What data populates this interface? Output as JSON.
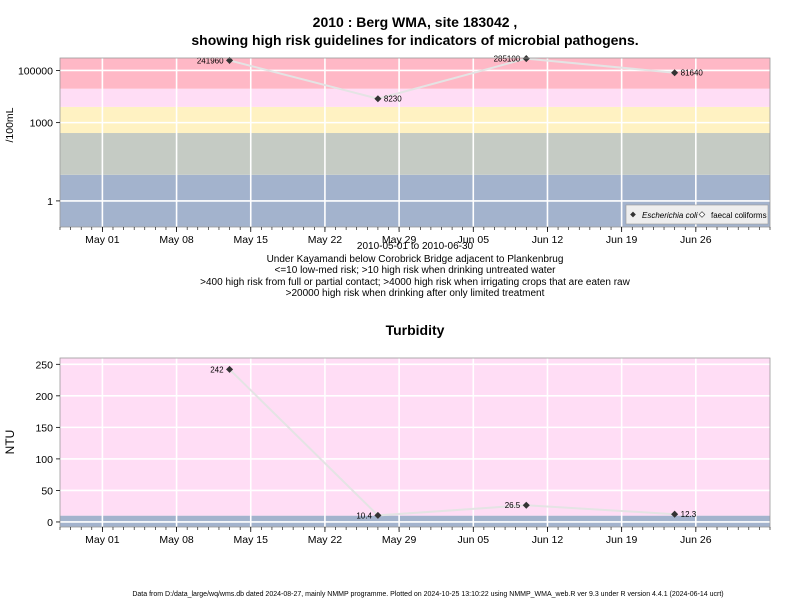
{
  "page": {
    "title_line1": "2010 : Berg WMA, site 183042 ,",
    "title_line2": "showing high risk guidelines for indicators of microbial pathogens.",
    "footer": "Data from D:/data_large/wq/wms.db dated 2024-08-27, mainly NMMP programme. Plotted on 2024-10-25 13:10:22 using NMMP_WMA_web.R ver 9.3 under R version 4.4.1 (2024-06-14 ucrt)"
  },
  "chart_data": [
    {
      "type": "scatter",
      "title": "",
      "ylabel": "/100mL",
      "xlabel": "",
      "y_scale": "log10",
      "ylim": [
        0.1,
        300000
      ],
      "xlim": [
        "2010-04-27",
        "2010-07-03"
      ],
      "y_ticks": [
        1,
        1000,
        100000
      ],
      "y_tick_labels": [
        "1",
        "1000",
        "100000"
      ],
      "x_ticks": [
        "2010-05-01",
        "2010-05-08",
        "2010-05-15",
        "2010-05-22",
        "2010-05-29",
        "2010-06-05",
        "2010-06-12",
        "2010-06-19",
        "2010-06-26"
      ],
      "x_tick_labels": [
        "May 01",
        "May 08",
        "May 15",
        "May 22",
        "May 29",
        "Jun 05",
        "Jun 12",
        "Jun 19",
        "Jun 26"
      ],
      "grid": true,
      "bands": [
        {
          "from": 0.1,
          "to": 10,
          "color": "#a3b3cd"
        },
        {
          "from": 10,
          "to": 400,
          "color": "#c5cbc4"
        },
        {
          "from": 400,
          "to": 4000,
          "color": "#fff2c2"
        },
        {
          "from": 4000,
          "to": 20000,
          "color": "#ffddf5"
        },
        {
          "from": 20000,
          "to": 300000,
          "color": "#ffb8c6"
        }
      ],
      "legend": {
        "position": "bottom-right",
        "entries": [
          "Escherichia coli",
          "faecal coliforms"
        ]
      },
      "series": [
        {
          "name": "Escherichia coli",
          "color": "#333333",
          "points": [
            {
              "x": "2010-05-13",
              "y": 241960,
              "label": "241960",
              "label_side": "left"
            },
            {
              "x": "2010-05-27",
              "y": 8230,
              "label": "8230",
              "label_side": "right"
            },
            {
              "x": "2010-06-10",
              "y": 285100,
              "label": "285100",
              "label_side": "left"
            },
            {
              "x": "2010-06-24",
              "y": 81640,
              "label": "81640",
              "label_side": "right"
            }
          ]
        }
      ],
      "caption_lines": [
        "2010-05-01 to 2010-06-30",
        "Under Kayamandi below Corobrick Bridge adjacent to Plankenbrug",
        "<=10 low-med risk; >10 high risk when drinking untreated water",
        ">400 high risk from full or partial contact; >4000 high risk when irrigating crops that are eaten raw",
        ">20000 high risk when drinking after only limited treatment"
      ]
    },
    {
      "type": "scatter",
      "title": "Turbidity",
      "ylabel": "NTU",
      "xlabel": "",
      "y_scale": "linear",
      "ylim": [
        -8,
        260
      ],
      "xlim": [
        "2010-04-27",
        "2010-07-03"
      ],
      "y_ticks": [
        0,
        50,
        100,
        150,
        200,
        250
      ],
      "y_tick_labels": [
        "0",
        "50",
        "100",
        "150",
        "200",
        "250"
      ],
      "x_ticks": [
        "2010-05-01",
        "2010-05-08",
        "2010-05-15",
        "2010-05-22",
        "2010-05-29",
        "2010-06-05",
        "2010-06-12",
        "2010-06-19",
        "2010-06-26"
      ],
      "x_tick_labels": [
        "May 01",
        "May 08",
        "May 15",
        "May 22",
        "May 29",
        "Jun 05",
        "Jun 12",
        "Jun 19",
        "Jun 26"
      ],
      "grid": true,
      "bands": [
        {
          "from": -8,
          "to": 10,
          "color": "#a3b3cd"
        },
        {
          "from": 10,
          "to": 260,
          "color": "#ffddf5"
        }
      ],
      "series": [
        {
          "name": "",
          "color": "#333333",
          "points": [
            {
              "x": "2010-05-13",
              "y": 242,
              "label": "242",
              "label_side": "left"
            },
            {
              "x": "2010-05-27",
              "y": 10.4,
              "label": "10.4",
              "label_side": "left"
            },
            {
              "x": "2010-06-10",
              "y": 26.5,
              "label": "26.5",
              "label_side": "left"
            },
            {
              "x": "2010-06-24",
              "y": 12.3,
              "label": "12.3",
              "label_side": "right"
            }
          ]
        }
      ]
    }
  ]
}
